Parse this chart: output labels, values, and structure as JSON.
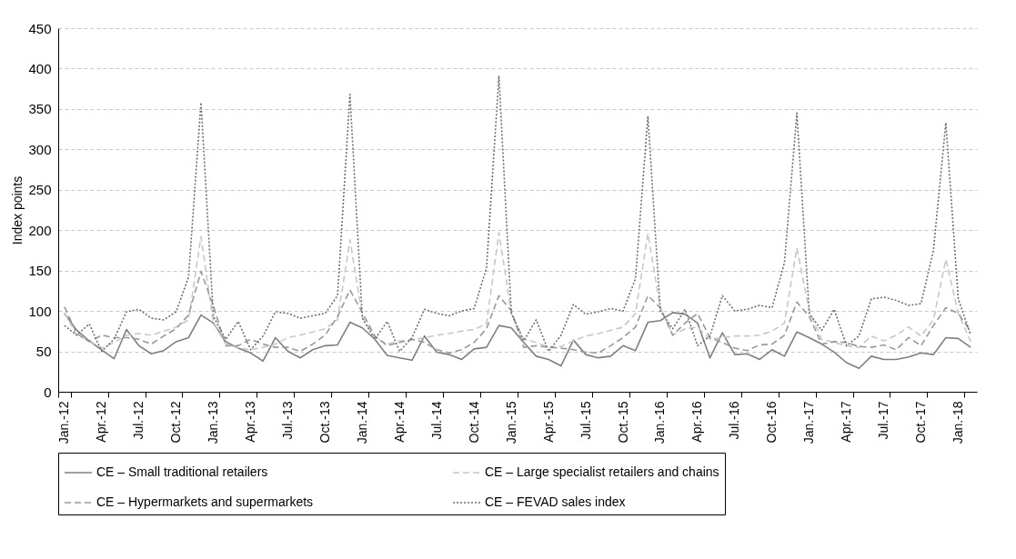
{
  "chart_data": {
    "type": "line",
    "ylabel": "Index points",
    "ylim": [
      0,
      450
    ],
    "yticks": [
      0,
      50,
      100,
      150,
      200,
      250,
      300,
      350,
      400,
      450
    ],
    "grid": "y",
    "legend": "bottom",
    "categories": [
      "Jan.-12",
      null,
      null,
      "Apr.-12",
      null,
      null,
      "Jul.-12",
      null,
      null,
      "Oct.-12",
      null,
      null,
      "Jan.-13",
      null,
      null,
      "Apr.-13",
      null,
      null,
      "Jul.-13",
      null,
      null,
      "Oct.-13",
      null,
      null,
      "Jan.-14",
      null,
      null,
      "Apr.-14",
      null,
      null,
      "Jul.-14",
      null,
      null,
      "Oct.-14",
      null,
      null,
      "Jan.-15",
      null,
      null,
      "Apr.-15",
      null,
      null,
      "Jul.-15",
      null,
      null,
      "Oct.-15",
      null,
      null,
      "Jan.-16",
      null,
      null,
      "Apr.-16",
      null,
      null,
      "Jul.-16",
      null,
      null,
      "Oct.-16",
      null,
      null,
      "Jan.-17",
      null,
      null,
      "Apr.-17",
      null,
      null,
      "Jul.-17",
      null,
      null,
      "Oct.-17",
      null,
      null,
      "Jan.-18",
      null
    ],
    "series": [
      {
        "name": "CE – Small traditional retailers",
        "color": "#7f7f7f",
        "line_style": "solid",
        "values": [
          97,
          76,
          63,
          52,
          41,
          77,
          57,
          47,
          51,
          62,
          67,
          95,
          85,
          62,
          54,
          48,
          38,
          67,
          50,
          42,
          52,
          57,
          58,
          86,
          79,
          65,
          45,
          42,
          39,
          69,
          49,
          46,
          40,
          53,
          55,
          82,
          79,
          61,
          44,
          40,
          32,
          64,
          46,
          42,
          44,
          57,
          51,
          86,
          88,
          98,
          96,
          85,
          42,
          73,
          46,
          47,
          40,
          52,
          44,
          74,
          67,
          59,
          49,
          36,
          29,
          44,
          40,
          40,
          43,
          48,
          46,
          67,
          66,
          55
        ]
      },
      {
        "name": "CE – Large specialist retailers and chains",
        "color": "#c8c8c8",
        "line_style": "dashed",
        "values": [
          98,
          70,
          63,
          54,
          61,
          70,
          72,
          70,
          75,
          80,
          89,
          192,
          85,
          59,
          54,
          52,
          55,
          59,
          67,
          70,
          74,
          78,
          89,
          188,
          93,
          67,
          59,
          63,
          64,
          67,
          70,
          72,
          75,
          77,
          84,
          197,
          97,
          65,
          61,
          55,
          56,
          63,
          69,
          72,
          76,
          80,
          97,
          196,
          104,
          70,
          78,
          80,
          65,
          67,
          69,
          69,
          70,
          75,
          85,
          178,
          100,
          65,
          61,
          57,
          55,
          69,
          63,
          70,
          80,
          69,
          89,
          164,
          97,
          62
        ]
      },
      {
        "name": "CE – Hypermarkets and supermarkets",
        "color": "#999999",
        "line_style": "dashed",
        "values": [
          105,
          72,
          62,
          70,
          67,
          67,
          65,
          59,
          69,
          78,
          95,
          149,
          106,
          57,
          57,
          65,
          59,
          55,
          55,
          50,
          59,
          70,
          93,
          126,
          98,
          69,
          57,
          61,
          65,
          61,
          52,
          48,
          52,
          61,
          78,
          119,
          100,
          55,
          57,
          55,
          54,
          52,
          49,
          48,
          57,
          67,
          80,
          119,
          104,
          70,
          85,
          97,
          67,
          61,
          54,
          51,
          58,
          59,
          70,
          111,
          93,
          59,
          62,
          61,
          56,
          55,
          58,
          52,
          67,
          57,
          82,
          104,
          97,
          75
        ]
      },
      {
        "name": "CE – FEVAD sales index",
        "color": "#6e6e6e",
        "line_style": "dotted",
        "values": [
          82,
          70,
          84,
          50,
          65,
          99,
          102,
          91,
          89,
          99,
          142,
          358,
          93,
          65,
          87,
          52,
          69,
          99,
          97,
          91,
          94,
          97,
          119,
          368,
          91,
          65,
          87,
          50,
          67,
          102,
          97,
          94,
          100,
          103,
          153,
          391,
          97,
          63,
          89,
          50,
          70,
          108,
          96,
          99,
          103,
          100,
          140,
          341,
          100,
          78,
          102,
          57,
          69,
          119,
          100,
          102,
          107,
          104,
          160,
          345,
          97,
          76,
          102,
          57,
          69,
          115,
          117,
          113,
          107,
          109,
          175,
          333,
          115,
          70
        ]
      }
    ]
  }
}
